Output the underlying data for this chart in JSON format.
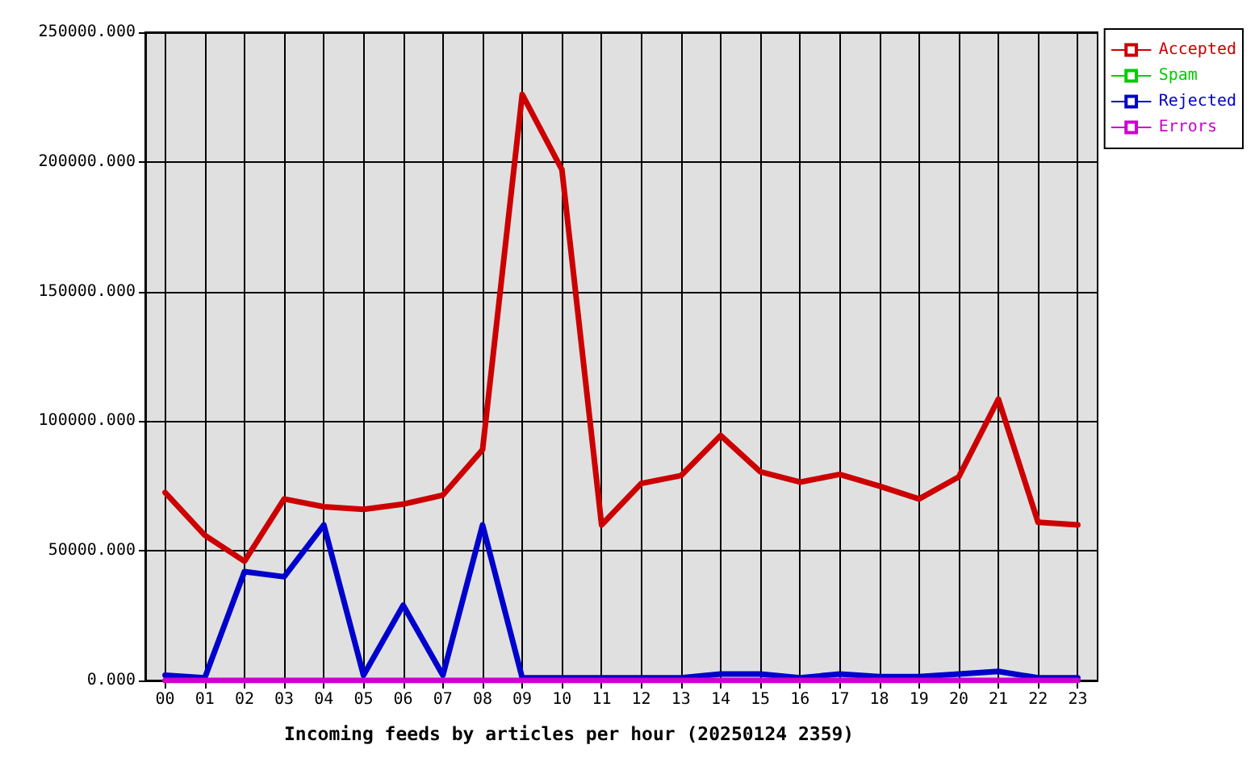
{
  "chart_data": {
    "type": "line",
    "xlabel": "Incoming feeds by articles per hour (20250124 2359)",
    "categories": [
      "00",
      "01",
      "02",
      "03",
      "04",
      "05",
      "06",
      "07",
      "08",
      "09",
      "10",
      "11",
      "12",
      "13",
      "14",
      "15",
      "16",
      "17",
      "18",
      "19",
      "20",
      "21",
      "22",
      "23"
    ],
    "series": [
      {
        "name": "Accepted",
        "color": "#cc0000",
        "values": [
          72500,
          56000,
          46000,
          70000,
          67000,
          66000,
          68000,
          71500,
          89000,
          226000,
          197000,
          60000,
          76000,
          79000,
          94500,
          80500,
          76500,
          79500,
          75000,
          70000,
          78500,
          108500,
          61000,
          60000
        ]
      },
      {
        "name": "Spam",
        "color": "#00cc00",
        "values": [
          null,
          null,
          null,
          null,
          null,
          null,
          null,
          null,
          null,
          null,
          null,
          null,
          null,
          null,
          null,
          null,
          null,
          null,
          null,
          null,
          null,
          null,
          null,
          null
        ]
      },
      {
        "name": "Rejected",
        "color": "#0000cc",
        "values": [
          2000,
          1000,
          42000,
          40000,
          60000,
          2000,
          29000,
          2000,
          60000,
          1000,
          1000,
          1000,
          1000,
          1000,
          2500,
          2500,
          1000,
          2500,
          1500,
          1500,
          2500,
          3500,
          1000,
          1000
        ]
      },
      {
        "name": "Errors",
        "color": "#cc00cc",
        "values": [
          0,
          0,
          0,
          0,
          0,
          0,
          0,
          0,
          0,
          0,
          0,
          0,
          0,
          0,
          0,
          0,
          0,
          0,
          0,
          0,
          0,
          0,
          0,
          0
        ]
      }
    ],
    "ylim": [
      0,
      250000
    ],
    "yticks": [
      {
        "value": 0,
        "label": "0.000"
      },
      {
        "value": 50000,
        "label": "50000.000"
      },
      {
        "value": 100000,
        "label": "100000.000"
      },
      {
        "value": 150000,
        "label": "150000.000"
      },
      {
        "value": 200000,
        "label": "200000.000"
      },
      {
        "value": 250000,
        "label": "250000.000"
      }
    ],
    "grid": true,
    "legend": "top right",
    "line_style": "solid"
  }
}
